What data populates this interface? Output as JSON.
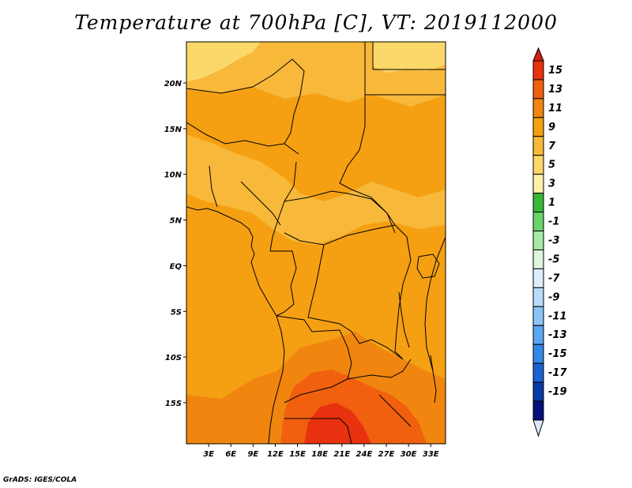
{
  "title": "Temperature at 700hPa [C], VT: 2019112000",
  "credit": "GrADS: IGES/COLA",
  "map": {
    "lon_range": [
      0,
      35
    ],
    "lat_range": [
      -19.5,
      24.5
    ],
    "lat_ticks": [
      {
        "value": 20,
        "label": "20N"
      },
      {
        "value": 15,
        "label": "15N"
      },
      {
        "value": 10,
        "label": "10N"
      },
      {
        "value": 5,
        "label": "5N"
      },
      {
        "value": 0,
        "label": "EQ"
      },
      {
        "value": -5,
        "label": "5S"
      },
      {
        "value": -10,
        "label": "10S"
      },
      {
        "value": -15,
        "label": "15S"
      }
    ],
    "lon_ticks": [
      {
        "value": 3,
        "label": "3E"
      },
      {
        "value": 6,
        "label": "6E"
      },
      {
        "value": 9,
        "label": "9E"
      },
      {
        "value": 12,
        "label": "12E"
      },
      {
        "value": 15,
        "label": "15E"
      },
      {
        "value": 18,
        "label": "18E"
      },
      {
        "value": 21,
        "label": "21E"
      },
      {
        "value": 24,
        "label": "24E"
      },
      {
        "value": 27,
        "label": "27E"
      },
      {
        "value": 30,
        "label": "30E"
      },
      {
        "value": 33,
        "label": "33E"
      }
    ]
  },
  "colorbar": {
    "labels": [
      "15",
      "13",
      "11",
      "9",
      "7",
      "5",
      "3",
      "1",
      "-1",
      "-3",
      "-5",
      "-7",
      "-9",
      "-11",
      "-13",
      "-15",
      "-17",
      "-19"
    ],
    "colors": [
      "#e8320f",
      "#f0600f",
      "#f0860f",
      "#f5a012",
      "#f8b83a",
      "#fbd86a",
      "#fff0a8",
      "#38b838",
      "#6ad46a",
      "#a6eaa6",
      "#dcf6dc",
      "#dceefc",
      "#b8dcfa",
      "#8cc4f6",
      "#5aa6f0",
      "#3488e6",
      "#1a62d2",
      "#0a3aa6",
      "#06107a"
    ],
    "top_color": "#d82010",
    "bottom_color": "#dce8fa"
  },
  "temperature_regions": [
    {
      "name": "background",
      "color": "#f5a012"
    },
    {
      "name": "sahara-north",
      "color": "#f8b83a"
    },
    {
      "name": "cool-northwest",
      "color": "#fbd86a"
    },
    {
      "name": "cool-northeast",
      "color": "#fbd86a"
    },
    {
      "name": "sahel-band",
      "color": "#f8b83a"
    },
    {
      "name": "warm-south",
      "color": "#f0860f"
    },
    {
      "name": "hot-kalahari",
      "color": "#f0600f"
    },
    {
      "name": "hottest-core",
      "color": "#e8320f"
    }
  ]
}
